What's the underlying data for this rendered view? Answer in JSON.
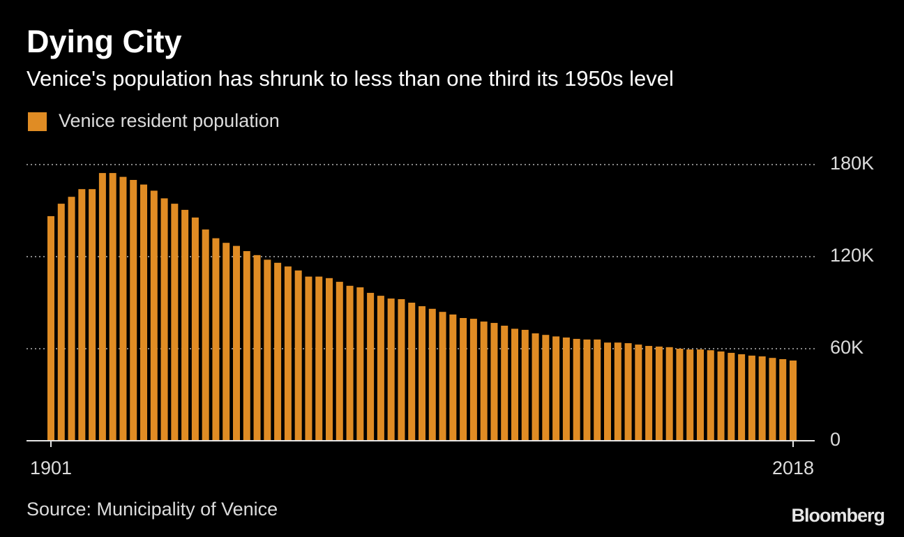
{
  "chart_data": {
    "type": "bar",
    "title": "Dying City",
    "subtitle": "Venice's population has shrunk to less than one third its 1950s level",
    "source": "Source: Municipality of Venice",
    "logo": "Bloomberg",
    "categories": [
      "1901",
      null,
      null,
      null,
      null,
      null,
      null,
      null,
      null,
      null,
      null,
      null,
      null,
      null,
      null,
      null,
      null,
      null,
      null,
      null,
      null,
      null,
      null,
      null,
      null,
      null,
      null,
      null,
      null,
      null,
      null,
      null,
      null,
      null,
      null,
      null,
      null,
      null,
      null,
      null,
      null,
      null,
      null,
      null,
      null,
      null,
      null,
      null,
      null,
      null,
      null,
      null,
      null,
      null,
      null,
      null,
      null,
      null,
      null,
      null,
      null,
      null,
      null,
      null,
      null,
      null,
      null,
      null,
      null,
      null,
      null,
      null,
      "2018"
    ],
    "series": [
      {
        "name": "Venice resident population",
        "color": "#e08c24",
        "values": [
          146400,
          154500,
          159000,
          164000,
          164000,
          174500,
          174500,
          172000,
          170000,
          167000,
          163000,
          158000,
          154500,
          150500,
          145500,
          137700,
          132000,
          129000,
          127000,
          123600,
          121000,
          118000,
          116000,
          113600,
          111000,
          107000,
          107000,
          106000,
          103600,
          101000,
          100000,
          96400,
          94500,
          92700,
          92300,
          90000,
          87700,
          86000,
          84000,
          82300,
          80000,
          79500,
          77700,
          76800,
          75000,
          73000,
          72300,
          70000,
          69000,
          68000,
          67300,
          66400,
          66000,
          66000,
          64000,
          64000,
          63600,
          62700,
          61800,
          61400,
          61000,
          60000,
          59500,
          59500,
          59000,
          58200,
          57300,
          56400,
          55500,
          55000,
          54000,
          53200,
          52300
        ]
      }
    ],
    "ylim": [
      0,
      180000
    ],
    "yticks": [
      0,
      {
        "value": 60000,
        "label": "60K"
      },
      {
        "value": 120000,
        "label": "120K"
      },
      {
        "value": 180000,
        "label": "180K"
      }
    ],
    "grid": true
  }
}
